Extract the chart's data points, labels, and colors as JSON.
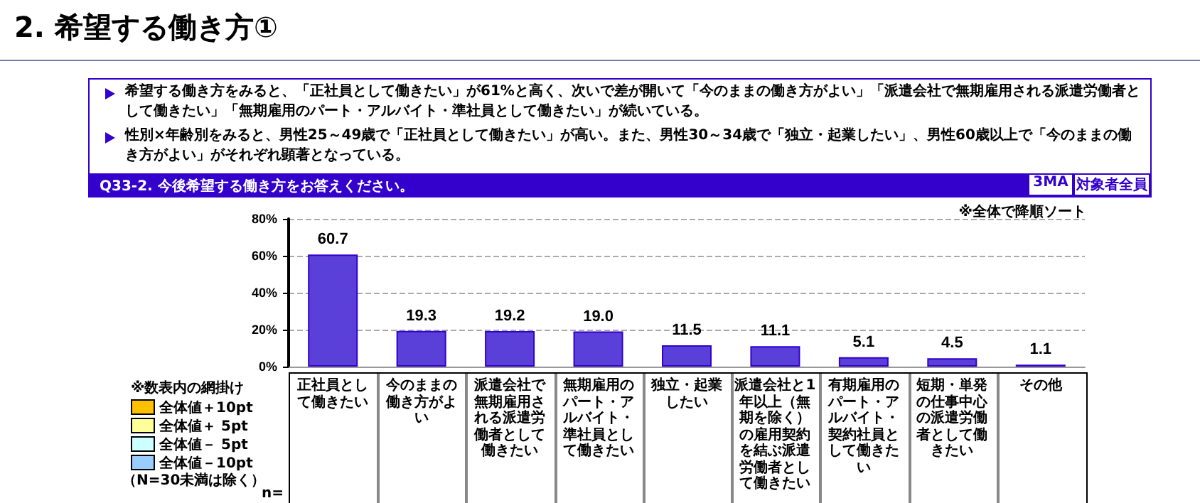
{
  "chart_data": {
    "type": "bar",
    "title": "2. 希望する働き方①",
    "subtitle": "Q33-2. 今後希望する働き方をお答えください。",
    "categories": [
      "正社員として働きたい",
      "今のままの働き方がよい",
      "派遣会社で無期雇用される派遣労働者として働きたい",
      "無期雇用のパート・アルバイト・準社員として働きたい",
      "独立・起業したい",
      "派遣会社と1年以上（無期を除く）の雇用契約を結ぶ派遣労働者として働きたい",
      "有期雇用のパート・アルバイト・契約社員として働きたい",
      "短期・単発の仕事中心の派遣労働者として働きたい",
      "その他"
    ],
    "values": [
      60.7,
      19.3,
      19.2,
      19.0,
      11.5,
      11.1,
      5.1,
      4.5,
      1.1
    ],
    "value_labels": [
      "60.7",
      "19.3",
      "19.2",
      "19.0",
      "11.5",
      "11.1",
      "5.1",
      "4.5",
      "1.1"
    ],
    "color": "#5b3fd9",
    "ylim": [
      0,
      80
    ],
    "yticks": [
      {
        "value": 0,
        "label": "0%"
      },
      {
        "value": 20,
        "label": "20%"
      },
      {
        "value": 40,
        "label": "40%"
      },
      {
        "value": 60,
        "label": "60%"
      },
      {
        "value": 80,
        "label": "80%"
      }
    ],
    "grid": "y",
    "annotations": [
      "希望する働き方をみると、「正社員として働きたい」が61%と高く、次いで差が開いて「今のままの働き方がよい」「派遣会社で無期雇用される派遣労働者として働きたい」「無期雇用のパート・アルバイト・準社員として働きたい」が続いている。",
      "性別×年齢別をみると、男性25～49歳で「正社員として働きたい」が高い。また、男性30～34歳で「独立・起業したい」、男性60歳以上で「今のままの働き方がよい」がそれぞれ顕著となっている。",
      "3MA",
      "対象者全員",
      "※全体で降順ソート",
      "※数表内の網掛け",
      "全体値＋10pt",
      "全体値＋ 5pt",
      "全体値－ 5pt",
      "全体値－10pt",
      "（N=30未満は除く）",
      "n="
    ]
  }
}
